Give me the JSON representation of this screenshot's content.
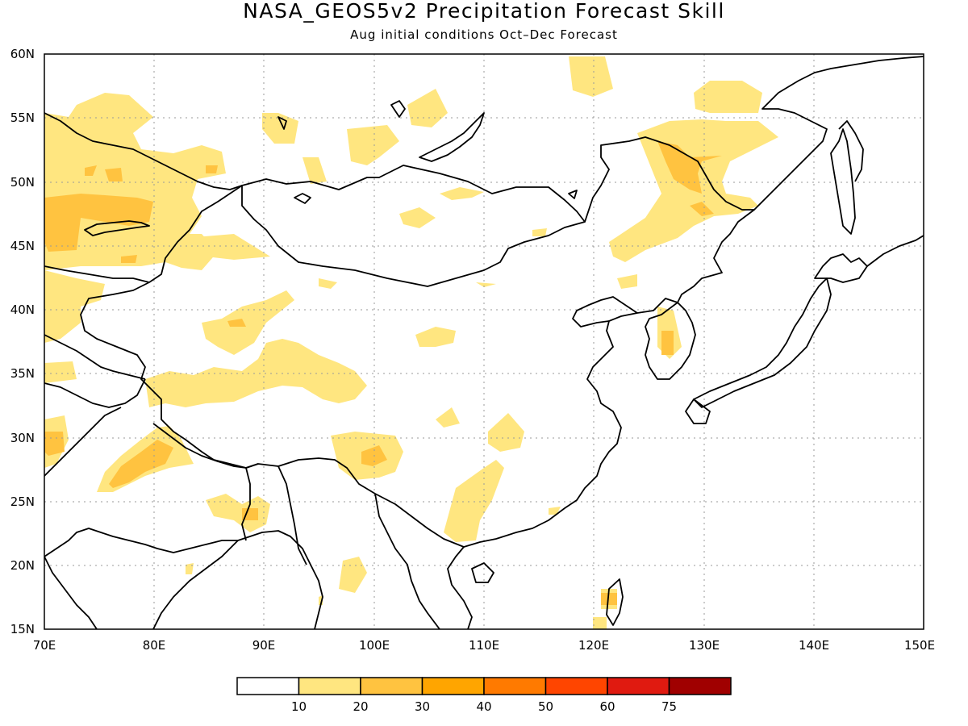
{
  "title": "NASA_GEOS5v2 Precipitation Forecast Skill",
  "subtitle": "Aug initial conditions  Oct–Dec Forecast",
  "map": {
    "lon_range": [
      70,
      150
    ],
    "lat_range": [
      15,
      60
    ],
    "lon_labels": [
      "70E",
      "80E",
      "90E",
      "100E",
      "110E",
      "120E",
      "130E",
      "140E",
      "150E"
    ],
    "lat_labels": [
      "60N",
      "55N",
      "50N",
      "45N",
      "40N",
      "35N",
      "30N",
      "25N",
      "20N",
      "15N"
    ],
    "gridlines": "dotted"
  },
  "colorbar": {
    "colors": [
      "#ffffff",
      "#ffe680",
      "#ffc340",
      "#ffa500",
      "#ff7a00",
      "#ff4500",
      "#e01a10",
      "#a00000"
    ],
    "labels": [
      "10",
      "20",
      "30",
      "40",
      "50",
      "60",
      "75"
    ]
  },
  "skill_colors": {
    "light": "#ffe680",
    "medium": "#ffc340",
    "coast": "#000000"
  }
}
